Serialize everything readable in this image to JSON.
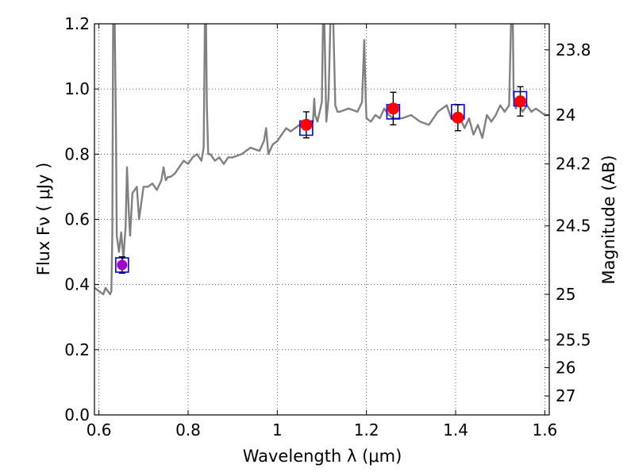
{
  "chart_data": {
    "type": "line",
    "xlabel": "Wavelength  λ (μm)",
    "ylabel": "Flux  Fν  ( μJy )",
    "ylabel_right": "Magnitude (AB)",
    "xlim": [
      0.59,
      1.61
    ],
    "ylim": [
      0.0,
      1.2
    ],
    "x_ticks": [
      0.6,
      0.8,
      1.0,
      1.2,
      1.4,
      1.6
    ],
    "x_tick_labels": [
      "0.6",
      "0.8",
      "1",
      "1.2",
      "1.4",
      "1.6"
    ],
    "y_ticks": [
      0.0,
      0.2,
      0.4,
      0.6,
      0.8,
      1.0,
      1.2
    ],
    "y_tick_labels": [
      "0.0",
      "0.2",
      "0.4",
      "0.6",
      "0.8",
      "1.0",
      "1.2"
    ],
    "mag_ticks": [
      {
        "label": "23.8",
        "flux": 1.12
      },
      {
        "label": "24",
        "flux": 0.92
      },
      {
        "label": "24.2",
        "flux": 0.77
      },
      {
        "label": "24.5",
        "flux": 0.58
      },
      {
        "label": "25",
        "flux": 0.37
      },
      {
        "label": "25.5",
        "flux": 0.23
      },
      {
        "label": "26",
        "flux": 0.145
      },
      {
        "label": "27",
        "flux": 0.058
      }
    ],
    "grid": true,
    "colors": {
      "model": "#808080",
      "observed": "#ff0000",
      "model_box": "#0000ff",
      "purple_point": "#a000c8",
      "errorbar": "#000000"
    },
    "model_spectrum": {
      "x": [
        0.59,
        0.6,
        0.61,
        0.615,
        0.62,
        0.625,
        0.628,
        0.63,
        0.632,
        0.635,
        0.638,
        0.64,
        0.645,
        0.65,
        0.655,
        0.66,
        0.663,
        0.667,
        0.67,
        0.675,
        0.68,
        0.685,
        0.69,
        0.7,
        0.71,
        0.72,
        0.73,
        0.74,
        0.745,
        0.75,
        0.755,
        0.76,
        0.77,
        0.78,
        0.79,
        0.8,
        0.81,
        0.82,
        0.83,
        0.835,
        0.838,
        0.84,
        0.842,
        0.845,
        0.85,
        0.86,
        0.87,
        0.88,
        0.89,
        0.9,
        0.92,
        0.94,
        0.96,
        0.97,
        0.975,
        0.98,
        0.99,
        1.0,
        1.01,
        1.02,
        1.03,
        1.04,
        1.05,
        1.06,
        1.07,
        1.08,
        1.083,
        1.085,
        1.09,
        1.1,
        1.103,
        1.105,
        1.11,
        1.115,
        1.12,
        1.125,
        1.13,
        1.135,
        1.14,
        1.16,
        1.18,
        1.19,
        1.195,
        1.198,
        1.2,
        1.21,
        1.22,
        1.23,
        1.24,
        1.25,
        1.26,
        1.28,
        1.3,
        1.32,
        1.34,
        1.36,
        1.38,
        1.39,
        1.4,
        1.41,
        1.42,
        1.43,
        1.44,
        1.45,
        1.46,
        1.47,
        1.48,
        1.49,
        1.5,
        1.51,
        1.52,
        1.525,
        1.528,
        1.53,
        1.535,
        1.54,
        1.55,
        1.56,
        1.57,
        1.58,
        1.59,
        1.6,
        1.61
      ],
      "y": [
        0.39,
        0.38,
        0.37,
        0.39,
        0.38,
        0.37,
        0.38,
        0.55,
        1.25,
        1.25,
        0.9,
        0.55,
        0.5,
        0.56,
        0.48,
        0.58,
        0.76,
        0.62,
        0.55,
        0.68,
        0.69,
        0.7,
        0.6,
        0.7,
        0.7,
        0.71,
        0.69,
        0.72,
        0.76,
        0.72,
        0.73,
        0.73,
        0.74,
        0.76,
        0.78,
        0.77,
        0.79,
        0.8,
        0.78,
        0.82,
        1.25,
        1.25,
        0.95,
        0.8,
        0.8,
        0.78,
        0.79,
        0.77,
        0.79,
        0.79,
        0.8,
        0.82,
        0.81,
        0.84,
        0.88,
        0.8,
        0.83,
        0.84,
        0.86,
        0.88,
        0.87,
        0.88,
        0.89,
        0.89,
        0.88,
        0.9,
        0.97,
        0.92,
        0.9,
        0.96,
        1.25,
        1.25,
        0.9,
        0.97,
        1.25,
        1.25,
        0.95,
        0.93,
        0.93,
        0.94,
        0.93,
        0.96,
        1.15,
        0.98,
        0.91,
        0.9,
        0.92,
        0.91,
        0.94,
        0.92,
        0.91,
        0.91,
        0.92,
        0.9,
        0.89,
        0.93,
        0.95,
        0.91,
        0.9,
        0.91,
        0.88,
        0.91,
        0.86,
        0.89,
        0.85,
        0.92,
        0.9,
        0.92,
        0.95,
        0.93,
        0.95,
        1.25,
        1.25,
        0.98,
        0.94,
        0.96,
        0.93,
        0.95,
        0.93,
        0.94,
        0.93,
        0.92,
        0.92
      ]
    },
    "observed": [
      {
        "x": 1.065,
        "y": 0.89,
        "yerr": 0.04
      },
      {
        "x": 1.26,
        "y": 0.94,
        "yerr": 0.05
      },
      {
        "x": 1.405,
        "y": 0.912,
        "yerr": 0.04
      },
      {
        "x": 1.545,
        "y": 0.962,
        "yerr": 0.045
      }
    ],
    "purple_point": {
      "x": 0.652,
      "y": 0.46,
      "yerr": 0.025
    },
    "model_boxes": [
      {
        "x": 0.652,
        "y": 0.46
      },
      {
        "x": 1.065,
        "y": 0.88
      },
      {
        "x": 1.26,
        "y": 0.93
      },
      {
        "x": 1.405,
        "y": 0.93
      },
      {
        "x": 1.545,
        "y": 0.97
      }
    ]
  }
}
